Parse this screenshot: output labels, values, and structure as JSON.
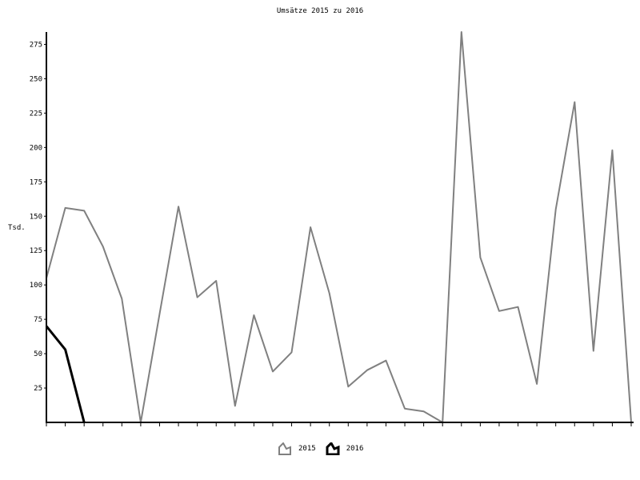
{
  "chart_data": {
    "type": "line",
    "title": "Umsätze 2015 zu 2016",
    "xlabel": "",
    "ylabel": "Tsd.",
    "ylim": [
      0,
      284
    ],
    "yticks": [
      25,
      50,
      75,
      100,
      125,
      150,
      175,
      200,
      225,
      250,
      275
    ],
    "x_tick_count": 32,
    "grid": false,
    "legend_position": "bottom",
    "series": [
      {
        "name": "2015",
        "color": "#808080",
        "values": [
          105,
          156,
          154,
          128,
          90,
          0,
          79,
          157,
          91,
          103,
          12,
          78,
          37,
          51,
          142,
          94,
          26,
          38,
          45,
          10,
          8,
          0,
          284,
          120,
          81,
          84,
          28,
          155,
          233,
          52,
          198,
          0
        ]
      },
      {
        "name": "2016",
        "color": "#000000",
        "values": [
          70,
          53,
          0
        ]
      }
    ]
  }
}
